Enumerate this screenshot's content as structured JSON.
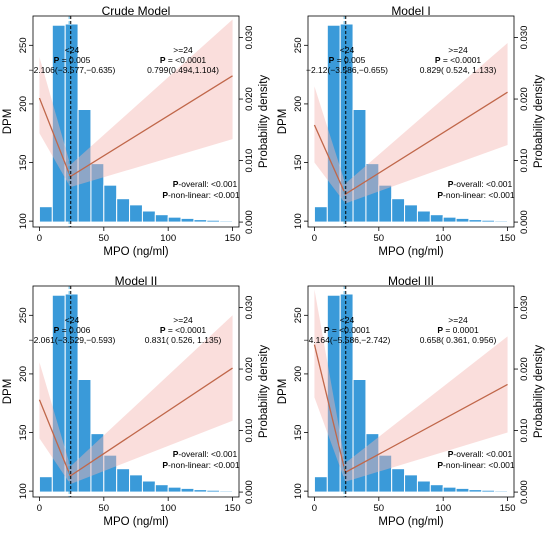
{
  "chart_data": [
    {
      "type": "histogram+spline",
      "title": "Crude Model",
      "xlabel": "MPO (ng/ml)",
      "ylabel": "DPM",
      "y2label": "Probability density",
      "xlim": [
        -5,
        155
      ],
      "ylim": [
        95,
        275
      ],
      "y2lim": [
        -0.0008,
        0.0335
      ],
      "xticks": [
        "0",
        "50",
        "100",
        "150"
      ],
      "yticks": [
        "100",
        "150",
        "200",
        "250"
      ],
      "y2ticks": [
        "0.000",
        "0.010",
        "0.020",
        "0.030"
      ],
      "cutoff": 24,
      "histogram": {
        "bin_width": 10,
        "bin_starts": [
          0,
          10,
          20,
          30,
          40,
          50,
          60,
          70,
          80,
          90,
          100,
          110,
          120,
          130,
          140
        ],
        "density": [
          0.0025,
          0.032,
          0.0322,
          0.0183,
          0.0095,
          0.006,
          0.0038,
          0.0028,
          0.0018,
          0.0012,
          0.0008,
          0.0006,
          0.0004,
          0.0003,
          0.0002
        ]
      },
      "spline": {
        "x": [
          0,
          24,
          150
        ],
        "y": [
          205,
          138,
          224
        ]
      },
      "ci_lower": {
        "x": [
          0,
          24,
          150
        ],
        "y": [
          175,
          129,
          170
        ]
      },
      "ci_upper": {
        "x": [
          0,
          24,
          150
        ],
        "y": [
          240,
          148,
          272
        ]
      },
      "annotations": {
        "left_head": "<24",
        "left_p_label": "P",
        "left_p_value": " = 0.005",
        "left_or": "−2.106(−3.577,−0.635)",
        "right_head": ">=24",
        "right_p_label": "P",
        "right_p_value": " = <0.0001",
        "right_or": "0.799(0.494,1.104)",
        "overall_label": "P",
        "overall_text": "-overall: <0.001",
        "nonlinear_label": "P",
        "nonlinear_text": "-non-linear: <0.001"
      }
    },
    {
      "type": "histogram+spline",
      "title": "Model I",
      "xlabel": "MPO (ng/ml)",
      "ylabel": "DPM",
      "y2label": "Probability density",
      "xlim": [
        -5,
        155
      ],
      "ylim": [
        95,
        275
      ],
      "y2lim": [
        -0.0008,
        0.0335
      ],
      "xticks": [
        "0",
        "50",
        "100",
        "150"
      ],
      "yticks": [
        "100",
        "150",
        "200",
        "250"
      ],
      "y2ticks": [
        "0.000",
        "0.010",
        "0.020",
        "0.030"
      ],
      "cutoff": 24,
      "histogram": {
        "bin_width": 10,
        "bin_starts": [
          0,
          10,
          20,
          30,
          40,
          50,
          60,
          70,
          80,
          90,
          100,
          110,
          120,
          130,
          140
        ],
        "density": [
          0.0025,
          0.032,
          0.0322,
          0.0183,
          0.0095,
          0.006,
          0.0038,
          0.0028,
          0.0018,
          0.0012,
          0.0008,
          0.0006,
          0.0004,
          0.0003,
          0.0002
        ]
      },
      "spline": {
        "x": [
          0,
          24,
          150
        ],
        "y": [
          182,
          123,
          210
        ]
      },
      "ci_lower": {
        "x": [
          0,
          24,
          150
        ],
        "y": [
          150,
          115,
          165
        ]
      },
      "ci_upper": {
        "x": [
          0,
          24,
          150
        ],
        "y": [
          215,
          132,
          252
        ]
      },
      "annotations": {
        "left_head": "<24",
        "left_p_label": "P",
        "left_p_value": " = 0.005",
        "left_or": "−2.12(−3.586,−0.655)",
        "right_head": ">=24",
        "right_p_label": "P",
        "right_p_value": " = <0.0001",
        "right_or": "0.829( 0.524, 1.133)",
        "overall_label": "P",
        "overall_text": "-overall: <0.001",
        "nonlinear_label": "P",
        "nonlinear_text": "-non-linear: <0.001"
      }
    },
    {
      "type": "histogram+spline",
      "title": "Model II",
      "xlabel": "MPO (ng/ml)",
      "ylabel": "DPM",
      "y2label": "Probability density",
      "xlim": [
        -5,
        155
      ],
      "ylim": [
        95,
        275
      ],
      "y2lim": [
        -0.0008,
        0.0335
      ],
      "xticks": [
        "0",
        "50",
        "100",
        "150"
      ],
      "yticks": [
        "100",
        "150",
        "200",
        "250"
      ],
      "y2ticks": [
        "0.000",
        "0.010",
        "0.020",
        "0.030"
      ],
      "cutoff": 24,
      "histogram": {
        "bin_width": 10,
        "bin_starts": [
          0,
          10,
          20,
          30,
          40,
          50,
          60,
          70,
          80,
          90,
          100,
          110,
          120,
          130,
          140
        ],
        "density": [
          0.0025,
          0.032,
          0.0322,
          0.0183,
          0.0095,
          0.006,
          0.0038,
          0.0028,
          0.0018,
          0.0012,
          0.0008,
          0.0006,
          0.0004,
          0.0003,
          0.0002
        ]
      },
      "spline": {
        "x": [
          0,
          24,
          150
        ],
        "y": [
          178,
          113,
          205
        ]
      },
      "ci_lower": {
        "x": [
          0,
          24,
          150
        ],
        "y": [
          145,
          106,
          160
        ]
      },
      "ci_upper": {
        "x": [
          0,
          24,
          150
        ],
        "y": [
          210,
          121,
          250
        ]
      },
      "annotations": {
        "left_head": "<24",
        "left_p_label": "P",
        "left_p_value": " = 0.006",
        "left_or": "−2.061(−3.529,−0.593)",
        "right_head": ">=24",
        "right_p_label": "P",
        "right_p_value": " = <0.0001",
        "right_or": "0.831(  0.526,  1.135)",
        "overall_label": "P",
        "overall_text": "-overall: <0.001",
        "nonlinear_label": "P",
        "nonlinear_text": "-non-linear: <0.001"
      }
    },
    {
      "type": "histogram+spline",
      "title": "Model III",
      "xlabel": "MPO (ng/ml)",
      "ylabel": "DPM",
      "y2label": "Probability density",
      "xlim": [
        -5,
        155
      ],
      "ylim": [
        95,
        275
      ],
      "y2lim": [
        -0.0008,
        0.0335
      ],
      "xticks": [
        "0",
        "50",
        "100",
        "150"
      ],
      "yticks": [
        "100",
        "150",
        "200",
        "250"
      ],
      "y2ticks": [
        "0.000",
        "0.010",
        "0.020",
        "0.030"
      ],
      "cutoff": 24,
      "histogram": {
        "bin_width": 10,
        "bin_starts": [
          0,
          10,
          20,
          30,
          40,
          50,
          60,
          70,
          80,
          90,
          100,
          110,
          120,
          130,
          140
        ],
        "density": [
          0.0025,
          0.032,
          0.0322,
          0.0183,
          0.0095,
          0.006,
          0.0038,
          0.0028,
          0.0018,
          0.0012,
          0.0008,
          0.0006,
          0.0004,
          0.0003,
          0.0002
        ]
      },
      "spline": {
        "x": [
          0,
          24,
          150
        ],
        "y": [
          225,
          116,
          191
        ]
      },
      "ci_lower": {
        "x": [
          0,
          24,
          150
        ],
        "y": [
          180,
          108,
          150
        ]
      },
      "ci_upper": {
        "x": [
          0,
          24,
          150
        ],
        "y": [
          272,
          124,
          232
        ]
      },
      "annotations": {
        "left_head": "<24",
        "left_p_label": "P",
        "left_p_value": " = <0.0001",
        "left_or": "−4.164(−5.586,−2.742)",
        "right_head": ">=24",
        "right_p_label": "P",
        "right_p_value": " = 0.0001",
        "right_or": "0.658(  0.361,  0.956)",
        "overall_label": "P",
        "overall_text": "-overall: <0.001",
        "nonlinear_label": "P",
        "nonlinear_text": "-non-linear: <0.001"
      }
    }
  ]
}
